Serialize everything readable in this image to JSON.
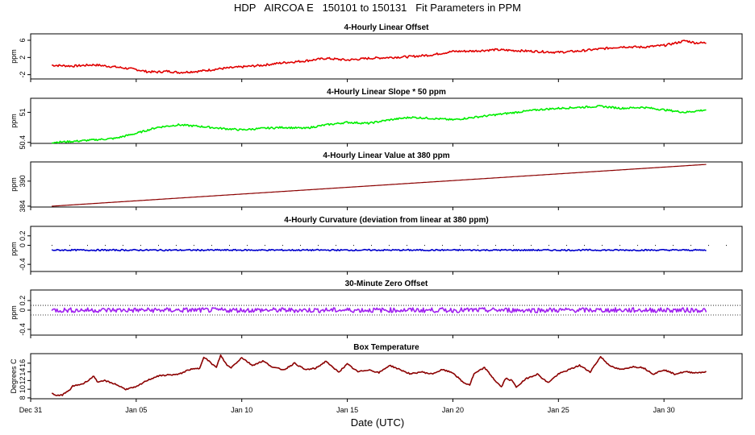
{
  "title": "HDP   AIRCOA E   150101 to 150131   Fit Parameters in PPM",
  "xlabel": "Date (UTC)",
  "x_ticks": [
    "Dec 31",
    "Jan 05",
    "Jan 10",
    "Jan 15",
    "Jan 20",
    "Jan 25",
    "Jan 30"
  ],
  "chart_data": [
    {
      "type": "line",
      "title": "4-Hourly Linear Offset",
      "ylabel": "ppm",
      "y_ticks": [
        -2,
        2,
        6
      ],
      "ylim": [
        -3,
        7.5
      ],
      "color": "#e00000",
      "series": [
        {
          "x": [
            1.0,
            2,
            3,
            4,
            5,
            5.5,
            6,
            6.5,
            7,
            8,
            9,
            10,
            11,
            12,
            13,
            14,
            15,
            16,
            17,
            18,
            19,
            20,
            21,
            22,
            23,
            24,
            25,
            26,
            27,
            28,
            29,
            30,
            30.5,
            31,
            31.5,
            32
          ],
          "values": [
            0.2,
            0.0,
            0.3,
            -0.2,
            -0.8,
            -1.3,
            -1.4,
            -1.2,
            -1.5,
            -1.2,
            -0.6,
            -0.2,
            0.2,
            0.8,
            1.2,
            1.8,
            1.4,
            1.8,
            2.0,
            2.2,
            2.6,
            3.4,
            3.5,
            3.8,
            3.6,
            3.4,
            3.2,
            3.5,
            4.0,
            4.5,
            4.4,
            4.8,
            5.3,
            5.9,
            5.4,
            5.4
          ]
        }
      ]
    },
    {
      "type": "line",
      "title": "4-Hourly Linear Slope * 50 ppm",
      "ylabel": "ppm",
      "y_ticks": [
        50.4,
        51.0
      ],
      "ylim": [
        50.38,
        51.28
      ],
      "color": "#00ee00",
      "series": [
        {
          "x": [
            1.0,
            2,
            3,
            4,
            5,
            6,
            7,
            8,
            9,
            10,
            11,
            12,
            13,
            14,
            15,
            16,
            17,
            18,
            19,
            20,
            21,
            22,
            23,
            24,
            25,
            26,
            27,
            28,
            29,
            30,
            31,
            32
          ],
          "values": [
            50.4,
            50.42,
            50.45,
            50.48,
            50.58,
            50.7,
            50.75,
            50.72,
            50.68,
            50.65,
            50.68,
            50.7,
            50.68,
            50.75,
            50.8,
            50.78,
            50.85,
            50.9,
            50.88,
            50.85,
            50.9,
            50.95,
            51.0,
            51.05,
            51.08,
            51.1,
            51.12,
            51.08,
            51.1,
            51.05,
            51.0,
            51.05
          ]
        }
      ]
    },
    {
      "type": "line",
      "title": "4-Hourly Linear Value at 380 ppm",
      "ylabel": "ppm",
      "y_ticks": [
        384,
        390
      ],
      "ylim": [
        383.8,
        394.6
      ],
      "color": "#8b0000",
      "series": [
        {
          "x": [
            1.0,
            32
          ],
          "values": [
            384.0,
            394.0
          ]
        }
      ]
    },
    {
      "type": "line",
      "title": "4-Hourly Curvature (deviation from linear at 380 ppm)",
      "ylabel": "ppm",
      "y_ticks": [
        -0.4,
        0.0,
        0.2
      ],
      "ylim": [
        -0.55,
        0.4
      ],
      "color": "#0000cc",
      "series": [
        {
          "x": [
            1.0,
            32
          ],
          "values": [
            -0.1,
            -0.1
          ]
        }
      ]
    },
    {
      "type": "line",
      "title": "30-Minute Zero Offset",
      "ylabel": "ppm",
      "y_ticks": [
        -0.4,
        0.0,
        0.2
      ],
      "ylim": [
        -0.52,
        0.42
      ],
      "color": "#a020f0",
      "series": [
        {
          "x": [
            1.0,
            32
          ],
          "values": [
            0.0,
            0.0
          ]
        }
      ]
    },
    {
      "type": "line",
      "title": "Box Temperature",
      "ylabel": "Degrees C",
      "y_ticks": [
        8,
        10,
        12,
        14,
        16
      ],
      "ylim": [
        7.8,
        18.2
      ],
      "color": "#8b0000",
      "series": [
        {
          "x": [
            1.0,
            1.2,
            1.5,
            1.8,
            2.0,
            2.5,
            3.0,
            3.2,
            3.5,
            4.0,
            4.5,
            5.0,
            5.5,
            6.0,
            6.5,
            7.0,
            7.5,
            8.0,
            8.2,
            8.5,
            8.8,
            9.0,
            9.3,
            9.5,
            10.0,
            10.5,
            11.0,
            11.5,
            12.0,
            12.5,
            13.0,
            13.5,
            14.0,
            14.3,
            14.6,
            15.0,
            15.5,
            16.0,
            16.5,
            17.0,
            17.5,
            18.0,
            18.5,
            19.0,
            19.5,
            20.0,
            20.5,
            20.8,
            21.0,
            21.5,
            22.0,
            22.3,
            22.5,
            22.8,
            23.0,
            23.5,
            24.0,
            24.5,
            25.0,
            25.5,
            26.0,
            26.5,
            27.0,
            27.3,
            27.6,
            28.0,
            28.5,
            29.0,
            29.5,
            30.0,
            30.5,
            31.0,
            31.5,
            32.0
          ],
          "values": [
            9.0,
            8.5,
            8.7,
            9.6,
            10.7,
            11.3,
            13.0,
            11.5,
            12.0,
            11.2,
            10.0,
            10.5,
            12.0,
            13.0,
            13.3,
            13.4,
            14.5,
            14.8,
            17.5,
            16.2,
            15.0,
            17.8,
            15.5,
            15.0,
            17.3,
            15.5,
            16.5,
            15.0,
            14.5,
            16.0,
            14.5,
            14.8,
            16.5,
            15.0,
            14.0,
            15.8,
            14.0,
            14.5,
            13.8,
            15.5,
            14.5,
            13.5,
            14.0,
            13.5,
            14.5,
            13.8,
            11.5,
            11.0,
            13.5,
            15.0,
            12.0,
            10.5,
            12.5,
            12.0,
            10.5,
            12.5,
            13.5,
            11.5,
            13.5,
            14.5,
            15.5,
            14.0,
            17.5,
            16.0,
            15.0,
            14.5,
            15.2,
            15.0,
            13.5,
            14.5,
            13.5,
            14.0,
            13.8,
            14.0
          ]
        }
      ]
    }
  ]
}
